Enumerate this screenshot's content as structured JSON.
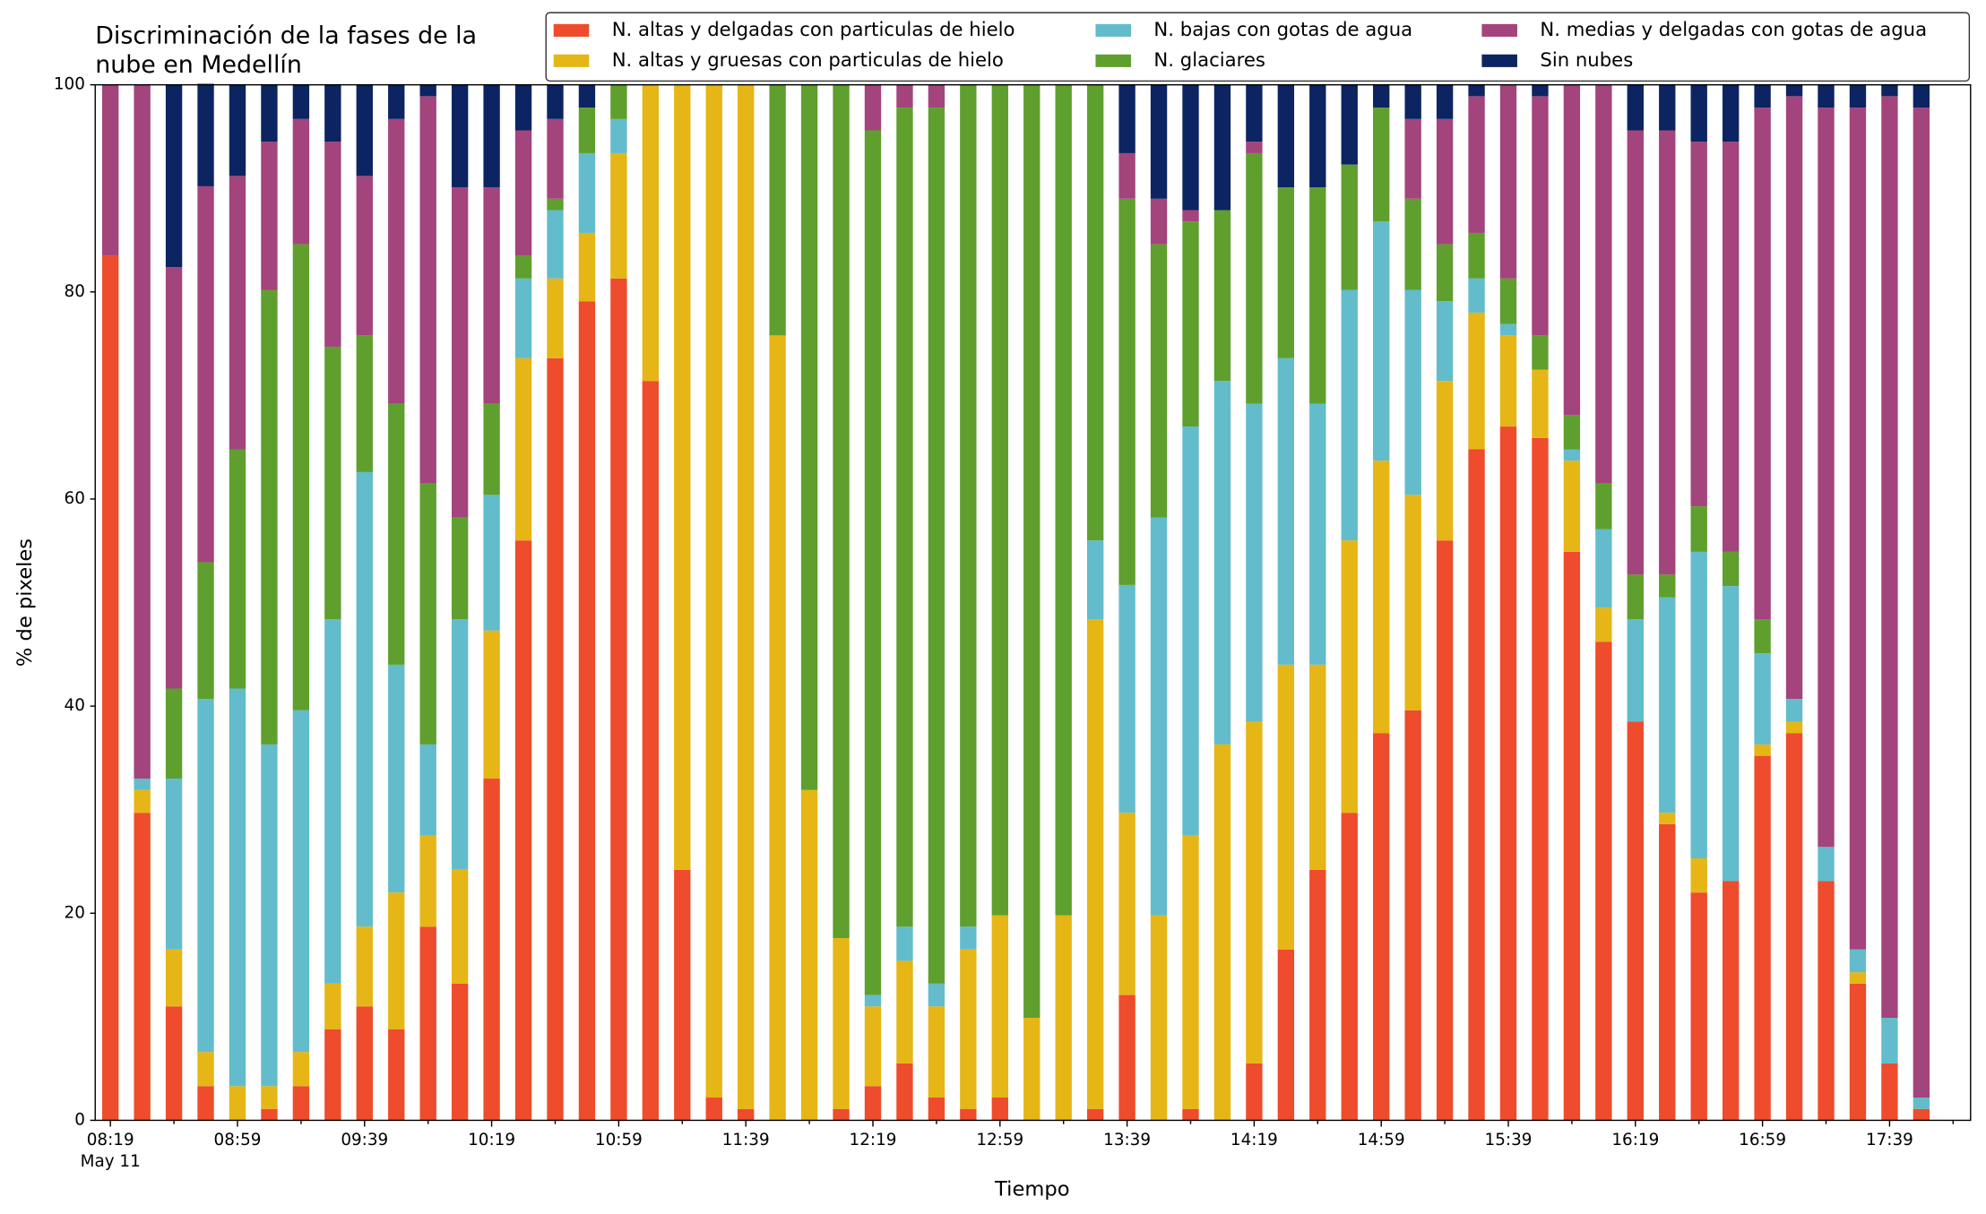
{
  "chart_data": {
    "type": "stacked_bar",
    "title": [
      "Discriminación de la fases de la",
      "nube en Medellín"
    ],
    "xlabel": "Tiempo",
    "ylabel": "% de pixeles",
    "x_date_label": "May 11",
    "categories": [
      "08:19",
      null,
      null,
      null,
      "08:59",
      null,
      null,
      null,
      "09:39",
      null,
      null,
      null,
      "10:19",
      null,
      null,
      null,
      "10:59",
      null,
      null,
      null,
      "11:39",
      null,
      null,
      null,
      "12:19",
      null,
      null,
      null,
      "12:59",
      null,
      null,
      null,
      "13:39",
      null,
      null,
      null,
      "14:19",
      null,
      null,
      null,
      "14:59",
      null,
      null,
      null,
      "15:39",
      null,
      null,
      null,
      "16:19",
      null,
      null,
      null,
      "16:59",
      null,
      null,
      null,
      "17:39",
      null
    ],
    "ylim": [
      0,
      100
    ],
    "yticks": [
      0,
      20,
      40,
      60,
      80,
      100
    ],
    "grid": false,
    "legend": "top",
    "series": [
      {
        "name": "N. altas y delgadas con particulas de hielo",
        "color": "#ee4c2c",
        "values": [
          83.5,
          29.7,
          11,
          3.3,
          0,
          1.1,
          3.3,
          8.8,
          11,
          8.8,
          18.7,
          13.2,
          33,
          56,
          73.6,
          79.1,
          81.3,
          71.4,
          24.2,
          2.2,
          1.1,
          0,
          0,
          1.1,
          3.3,
          5.5,
          2.2,
          1.1,
          2.2,
          0,
          0,
          1.1,
          12.1,
          0,
          1.1,
          0,
          5.5,
          16.5,
          24.2,
          29.7,
          37.4,
          39.6,
          56,
          64.8,
          67,
          65.9,
          54.9,
          46.2,
          38.5,
          28.6,
          22,
          23.1,
          35.2,
          37.4,
          23.1,
          13.2,
          5.5,
          1.1
        ]
      },
      {
        "name": "N. altas y gruesas con particulas de hielo",
        "color": "#e5b616",
        "values": [
          0,
          2.2,
          5.5,
          3.3,
          3.3,
          2.2,
          3.3,
          4.4,
          7.7,
          13.2,
          8.8,
          11,
          14.3,
          17.6,
          7.7,
          6.6,
          12.1,
          28.6,
          75.8,
          97.8,
          98.9,
          75.8,
          31.9,
          16.5,
          7.7,
          9.9,
          8.8,
          15.4,
          17.6,
          9.9,
          19.8,
          47.3,
          17.6,
          19.8,
          26.4,
          36.3,
          33,
          27.5,
          19.8,
          26.3,
          26.3,
          20.8,
          15.4,
          13.2,
          8.8,
          6.6,
          8.8,
          3.3,
          0,
          1.1,
          3.3,
          0,
          1.1,
          1.1,
          0,
          1.1,
          0,
          0
        ]
      },
      {
        "name": "N. bajas con gotas de agua",
        "color": "#63bccb",
        "values": [
          0,
          1.1,
          16.5,
          34.1,
          38.4,
          33,
          33,
          35.2,
          43.9,
          22,
          8.8,
          24.2,
          13.1,
          7.7,
          6.6,
          7.7,
          3.3,
          0,
          0,
          0,
          0,
          0,
          0,
          0,
          1.1,
          3.3,
          2.2,
          2.2,
          0,
          0,
          0,
          7.6,
          22,
          38.4,
          39.5,
          35.1,
          30.7,
          29.6,
          25.2,
          24.2,
          23.1,
          19.8,
          7.7,
          3.3,
          1.1,
          0,
          1.1,
          7.6,
          9.9,
          20.8,
          29.6,
          28.5,
          8.8,
          2.2,
          3.3,
          2.2,
          4.4,
          1.1
        ]
      },
      {
        "name": "N. glaciares",
        "color": "#5f9f2e",
        "values": [
          0,
          0,
          8.7,
          13.2,
          23.1,
          43.9,
          45,
          26.3,
          13.2,
          25.2,
          25.2,
          9.8,
          8.8,
          2.2,
          1.1,
          4.4,
          3.3,
          0,
          0,
          0,
          0,
          24.2,
          68.1,
          82.4,
          83.5,
          79.1,
          84.6,
          81.3,
          80.2,
          90.1,
          80.2,
          44,
          37.3,
          26.4,
          19.8,
          16.5,
          24.2,
          16.5,
          20.9,
          12.1,
          11,
          8.8,
          5.5,
          4.4,
          4.4,
          3.3,
          3.3,
          4.4,
          4.3,
          2.2,
          4.4,
          3.3,
          3.3,
          0,
          0,
          0,
          0,
          0
        ]
      },
      {
        "name": "N. medias y delgadas con gotas de agua",
        "color": "#a3447c",
        "values": [
          16.5,
          67,
          40.7,
          36.3,
          26.4,
          14.3,
          12.1,
          19.8,
          15.4,
          27.5,
          37.4,
          31.9,
          20.9,
          12.1,
          7.7,
          0,
          0,
          0,
          0,
          0,
          0,
          0,
          0,
          0,
          4.4,
          2.2,
          2.2,
          0,
          0,
          0,
          0,
          0,
          4.4,
          4.4,
          1.1,
          0,
          1.1,
          0,
          0,
          0,
          0,
          7.7,
          12.1,
          13.2,
          18.7,
          23.1,
          31.9,
          38.5,
          42.9,
          42.9,
          35.2,
          39.6,
          49.4,
          58.2,
          71.4,
          81.3,
          89,
          95.6
        ]
      },
      {
        "name": "Sin nubes",
        "color": "#0c2462",
        "values": [
          0,
          0,
          17.6,
          9.9,
          8.8,
          5.5,
          3.3,
          5.5,
          8.8,
          3.3,
          1.1,
          9.9,
          9.9,
          4.4,
          3.3,
          2.2,
          0,
          0,
          0,
          0,
          0,
          0,
          0,
          0,
          0,
          0,
          0,
          0,
          0,
          0,
          0,
          0,
          6.6,
          11,
          12.1,
          12.1,
          5.5,
          9.9,
          9.9,
          7.7,
          2.2,
          3.3,
          3.3,
          1.1,
          0,
          1.1,
          0,
          0,
          4.4,
          4.4,
          5.5,
          5.5,
          2.2,
          1.1,
          2.2,
          2.2,
          1.1,
          2.2
        ]
      }
    ]
  }
}
